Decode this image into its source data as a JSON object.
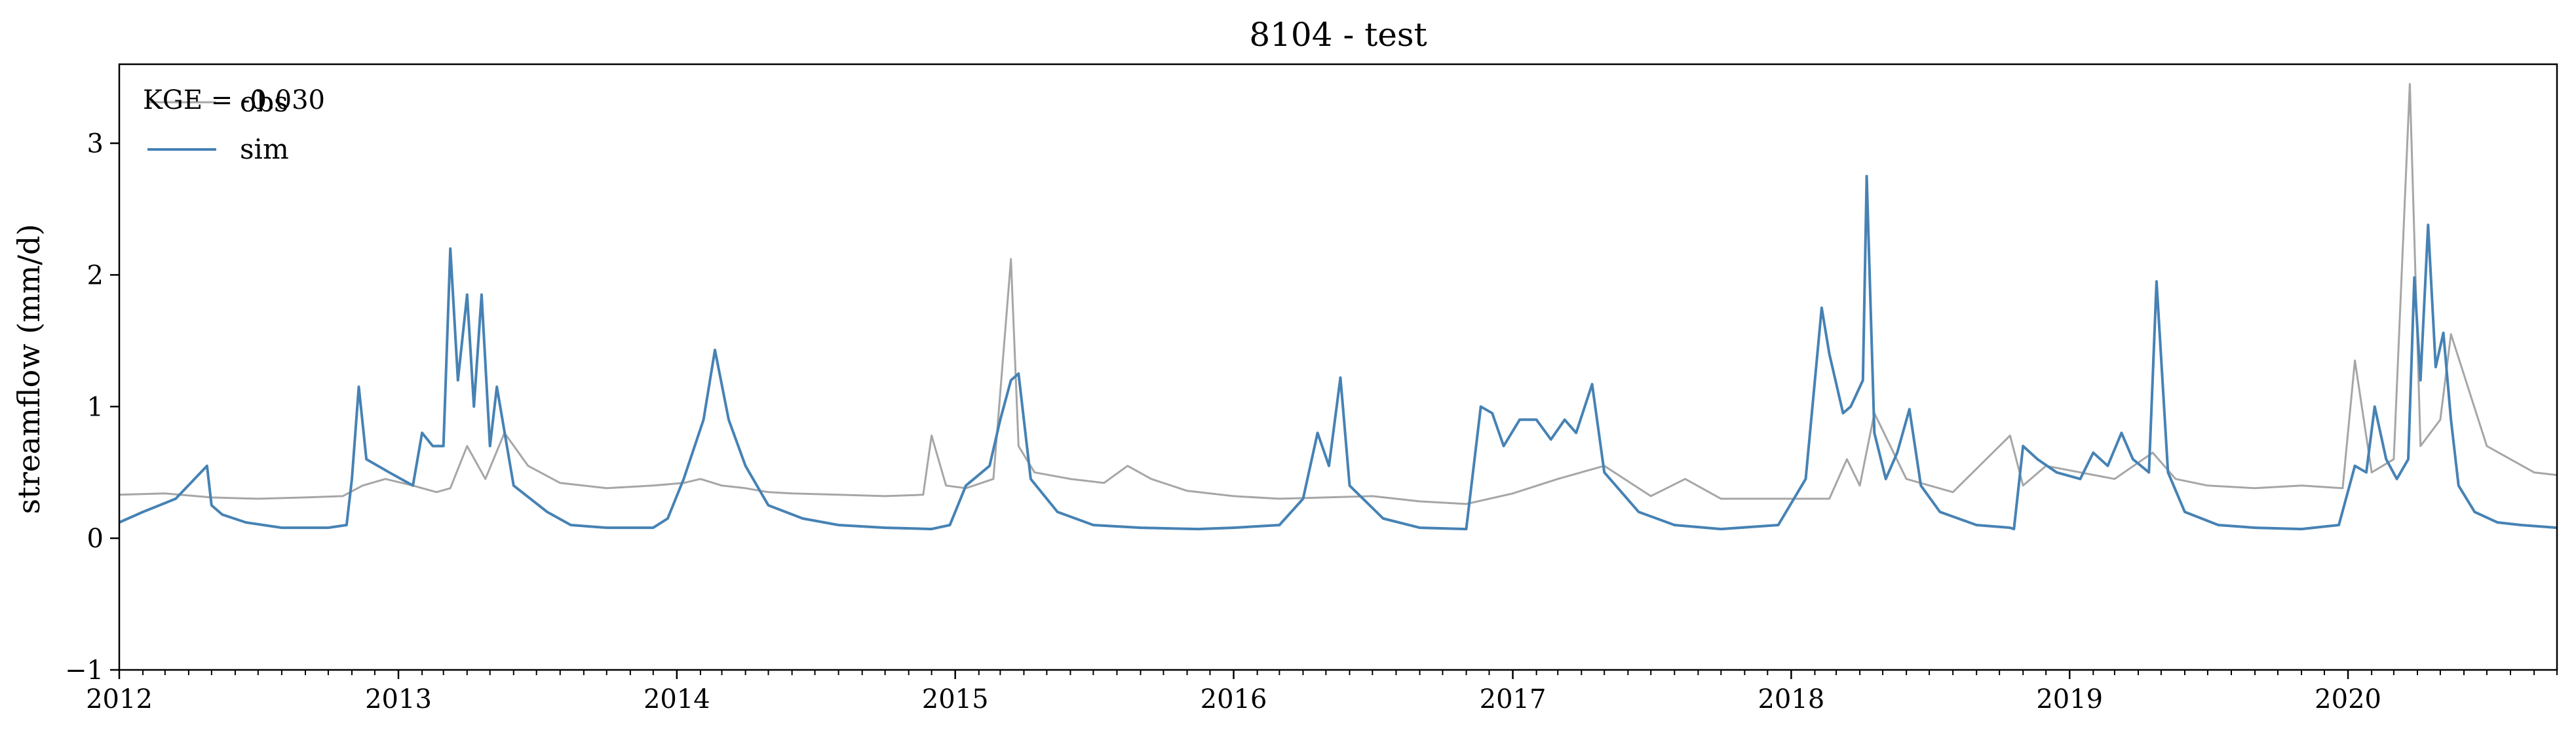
{
  "chart_data": {
    "type": "line",
    "title": "8104 - test",
    "ylabel": "streamflow (mm/d)",
    "xlabel": "",
    "xlim": [
      "2012-01-01",
      "2020-10-01"
    ],
    "ylim": [
      -1,
      3.6
    ],
    "yticks": [
      -1,
      0,
      1,
      2,
      3
    ],
    "ytick_labels": [
      "−1",
      "0",
      "1",
      "2",
      "3"
    ],
    "xticks": [
      "2012-01-01",
      "2013-01-01",
      "2014-01-01",
      "2015-01-01",
      "2016-01-01",
      "2017-01-01",
      "2018-01-01",
      "2019-01-01",
      "2020-01-01"
    ],
    "xtick_labels": [
      "2012",
      "2013",
      "2014",
      "2015",
      "2016",
      "2017",
      "2018",
      "2019",
      "2020"
    ],
    "grid": false,
    "legend_position": "top-left",
    "annotation": "KGE = -0.030",
    "series": [
      {
        "name": "obs",
        "color": "#a6a6a6",
        "x": [
          "2012-01-01",
          "2012-03-01",
          "2012-05-01",
          "2012-07-01",
          "2012-09-01",
          "2012-10-20",
          "2012-11-15",
          "2012-12-15",
          "2013-01-20",
          "2013-02-20",
          "2013-03-10",
          "2013-04-01",
          "2013-04-25",
          "2013-05-20",
          "2013-06-20",
          "2013-08-01",
          "2013-10-01",
          "2013-12-01",
          "2014-01-10",
          "2014-02-01",
          "2014-03-01",
          "2014-04-01",
          "2014-05-01",
          "2014-06-01",
          "2014-08-01",
          "2014-10-01",
          "2014-11-20",
          "2014-12-01",
          "2014-12-20",
          "2015-01-15",
          "2015-02-20",
          "2015-03-15",
          "2015-03-25",
          "2015-04-15",
          "2015-06-01",
          "2015-07-15",
          "2015-08-15",
          "2015-09-15",
          "2015-11-01",
          "2016-01-01",
          "2016-03-01",
          "2016-05-01",
          "2016-07-01",
          "2016-09-01",
          "2016-11-01",
          "2017-01-01",
          "2017-03-01",
          "2017-05-01",
          "2017-07-01",
          "2017-08-15",
          "2017-10-01",
          "2018-01-01",
          "2018-02-20",
          "2018-03-15",
          "2018-04-01",
          "2018-04-20",
          "2018-06-01",
          "2018-08-01",
          "2018-10-15",
          "2018-11-01",
          "2018-12-01",
          "2019-01-15",
          "2019-03-01",
          "2019-04-20",
          "2019-05-20",
          "2019-07-01",
          "2019-09-01",
          "2019-11-01",
          "2019-12-25",
          "2020-01-10",
          "2020-02-01",
          "2020-03-01",
          "2020-03-22",
          "2020-04-05",
          "2020-05-01",
          "2020-05-15",
          "2020-07-01",
          "2020-09-01",
          "2020-10-01"
        ],
        "y": [
          0.33,
          0.34,
          0.31,
          0.3,
          0.31,
          0.32,
          0.4,
          0.45,
          0.4,
          0.35,
          0.38,
          0.7,
          0.45,
          0.8,
          0.55,
          0.42,
          0.38,
          0.4,
          0.42,
          0.45,
          0.4,
          0.38,
          0.35,
          0.34,
          0.33,
          0.32,
          0.33,
          0.78,
          0.4,
          0.38,
          0.45,
          2.12,
          0.7,
          0.5,
          0.45,
          0.42,
          0.55,
          0.45,
          0.36,
          0.32,
          0.3,
          0.31,
          0.32,
          0.28,
          0.26,
          0.34,
          0.45,
          0.55,
          0.32,
          0.45,
          0.3,
          0.3,
          0.3,
          0.6,
          0.4,
          0.95,
          0.45,
          0.35,
          0.78,
          0.4,
          0.55,
          0.5,
          0.45,
          0.65,
          0.45,
          0.4,
          0.38,
          0.4,
          0.38,
          1.35,
          0.5,
          0.6,
          3.45,
          0.7,
          0.9,
          1.55,
          0.7,
          0.5,
          0.48
        ]
      },
      {
        "name": "sim",
        "color": "#4682b4",
        "x": [
          "2012-01-01",
          "2012-02-01",
          "2012-03-15",
          "2012-04-25",
          "2012-05-01",
          "2012-05-15",
          "2012-06-15",
          "2012-08-01",
          "2012-10-01",
          "2012-10-25",
          "2012-11-01",
          "2012-11-10",
          "2012-11-20",
          "2012-12-20",
          "2013-01-20",
          "2013-02-01",
          "2013-02-15",
          "2013-03-01",
          "2013-03-10",
          "2013-03-20",
          "2013-04-01",
          "2013-04-10",
          "2013-04-20",
          "2013-05-01",
          "2013-05-10",
          "2013-06-01",
          "2013-07-15",
          "2013-08-15",
          "2013-10-01",
          "2013-12-01",
          "2013-12-20",
          "2014-01-10",
          "2014-02-05",
          "2014-02-20",
          "2014-03-10",
          "2014-04-01",
          "2014-05-01",
          "2014-06-15",
          "2014-08-01",
          "2014-10-01",
          "2014-12-01",
          "2014-12-25",
          "2015-01-15",
          "2015-02-15",
          "2015-03-01",
          "2015-03-15",
          "2015-03-25",
          "2015-04-10",
          "2015-05-15",
          "2015-07-01",
          "2015-09-01",
          "2015-11-15",
          "2016-01-01",
          "2016-03-01",
          "2016-04-01",
          "2016-04-20",
          "2016-05-05",
          "2016-05-20",
          "2016-06-01",
          "2016-07-15",
          "2016-09-01",
          "2016-11-01",
          "2016-11-20",
          "2016-12-05",
          "2016-12-20",
          "2017-01-10",
          "2017-02-01",
          "2017-02-20",
          "2017-03-10",
          "2017-03-25",
          "2017-04-15",
          "2017-05-01",
          "2017-06-15",
          "2017-08-01",
          "2017-10-01",
          "2017-12-15",
          "2018-01-20",
          "2018-02-10",
          "2018-02-20",
          "2018-03-10",
          "2018-03-20",
          "2018-04-05",
          "2018-04-10",
          "2018-04-20",
          "2018-05-05",
          "2018-05-20",
          "2018-06-05",
          "2018-06-20",
          "2018-07-15",
          "2018-09-01",
          "2018-10-15",
          "2018-10-20",
          "2018-11-01",
          "2018-11-20",
          "2018-12-15",
          "2019-01-15",
          "2019-02-01",
          "2019-02-20",
          "2019-03-10",
          "2019-03-25",
          "2019-04-15",
          "2019-04-25",
          "2019-05-10",
          "2019-06-01",
          "2019-07-15",
          "2019-09-01",
          "2019-11-01",
          "2019-12-20",
          "2020-01-10",
          "2020-01-25",
          "2020-02-05",
          "2020-02-20",
          "2020-03-05",
          "2020-03-20",
          "2020-03-28",
          "2020-04-05",
          "2020-04-15",
          "2020-04-25",
          "2020-05-05",
          "2020-05-15",
          "2020-05-25",
          "2020-06-15",
          "2020-07-15",
          "2020-08-15",
          "2020-10-01"
        ],
        "y": [
          0.12,
          0.2,
          0.3,
          0.55,
          0.25,
          0.18,
          0.12,
          0.08,
          0.08,
          0.1,
          0.45,
          1.15,
          0.6,
          0.5,
          0.4,
          0.8,
          0.7,
          0.7,
          2.2,
          1.2,
          1.85,
          1.0,
          1.85,
          0.7,
          1.15,
          0.4,
          0.2,
          0.1,
          0.08,
          0.08,
          0.15,
          0.45,
          0.9,
          1.43,
          0.9,
          0.55,
          0.25,
          0.15,
          0.1,
          0.08,
          0.07,
          0.1,
          0.4,
          0.55,
          0.9,
          1.2,
          1.25,
          0.45,
          0.2,
          0.1,
          0.08,
          0.07,
          0.08,
          0.1,
          0.3,
          0.8,
          0.55,
          1.22,
          0.4,
          0.15,
          0.08,
          0.07,
          1.0,
          0.95,
          0.7,
          0.9,
          0.9,
          0.75,
          0.9,
          0.8,
          1.17,
          0.5,
          0.2,
          0.1,
          0.07,
          0.1,
          0.45,
          1.75,
          1.4,
          0.95,
          1.0,
          1.2,
          2.75,
          0.8,
          0.45,
          0.65,
          0.98,
          0.4,
          0.2,
          0.1,
          0.08,
          0.07,
          0.7,
          0.6,
          0.5,
          0.45,
          0.65,
          0.55,
          0.8,
          0.6,
          0.5,
          1.95,
          0.5,
          0.2,
          0.1,
          0.08,
          0.07,
          0.1,
          0.55,
          0.5,
          1.0,
          0.6,
          0.45,
          0.6,
          1.98,
          1.2,
          2.38,
          1.3,
          1.56,
          0.9,
          0.4,
          0.2,
          0.12,
          0.1,
          0.08
        ]
      }
    ]
  }
}
